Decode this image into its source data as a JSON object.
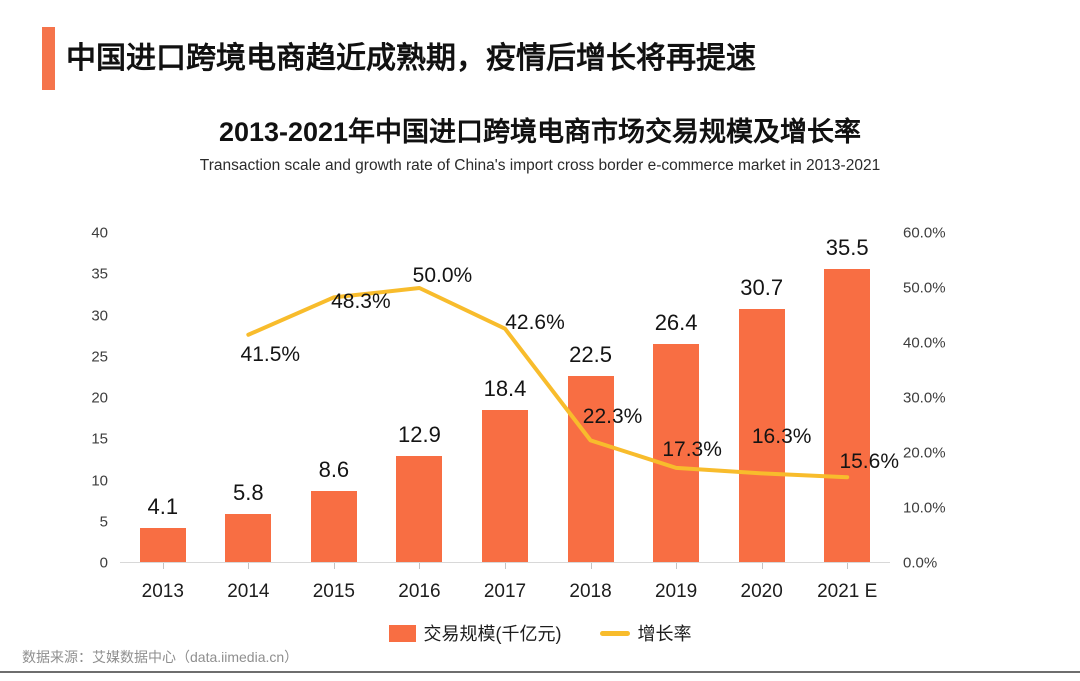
{
  "header": {
    "title": "中国进口跨境电商趋近成熟期，疫情后增长将再提速"
  },
  "chart_data": {
    "type": "bar+line",
    "title": "2013-2021年中国进口跨境电商市场交易规模及增长率",
    "subtitle": "Transaction scale and growth rate of China's import cross border e-commerce market in 2013-2021",
    "categories": [
      "2013",
      "2014",
      "2015",
      "2016",
      "2017",
      "2018",
      "2019",
      "2020",
      "2021 E"
    ],
    "series": [
      {
        "name": "交易规模(千亿元)",
        "type": "bar",
        "axis": "left",
        "color": "#F86E43",
        "values": [
          4.1,
          5.8,
          8.6,
          12.9,
          18.4,
          22.5,
          26.4,
          30.7,
          35.5
        ],
        "labels": [
          "4.1",
          "5.8",
          "8.6",
          "12.9",
          "18.4",
          "22.5",
          "26.4",
          "30.7",
          "35.5"
        ]
      },
      {
        "name": "增长率",
        "type": "line",
        "axis": "right",
        "color": "#F8BC2C",
        "values": [
          null,
          41.5,
          48.3,
          50.0,
          42.6,
          22.3,
          17.3,
          16.3,
          15.6
        ],
        "labels": [
          null,
          "41.5%",
          "48.3%",
          "50.0%",
          "42.6%",
          "22.3%",
          "17.3%",
          "16.3%",
          "15.6%"
        ]
      }
    ],
    "left_axis": {
      "min": 0,
      "max": 40,
      "step": 5,
      "ticks": [
        "0",
        "5",
        "10",
        "15",
        "20",
        "25",
        "30",
        "35",
        "40"
      ]
    },
    "right_axis": {
      "min": 0,
      "max": 60,
      "step": 10,
      "ticks": [
        "0.0%",
        "10.0%",
        "20.0%",
        "30.0%",
        "40.0%",
        "50.0%",
        "60.0%"
      ]
    },
    "grid": false,
    "legend_position": "bottom"
  },
  "footer": {
    "source": "数据来源：艾媒数据中心（data.iimedia.cn）"
  },
  "colors": {
    "accent": "#F5744B",
    "bar": "#F86E43",
    "line": "#F8BC2C"
  }
}
